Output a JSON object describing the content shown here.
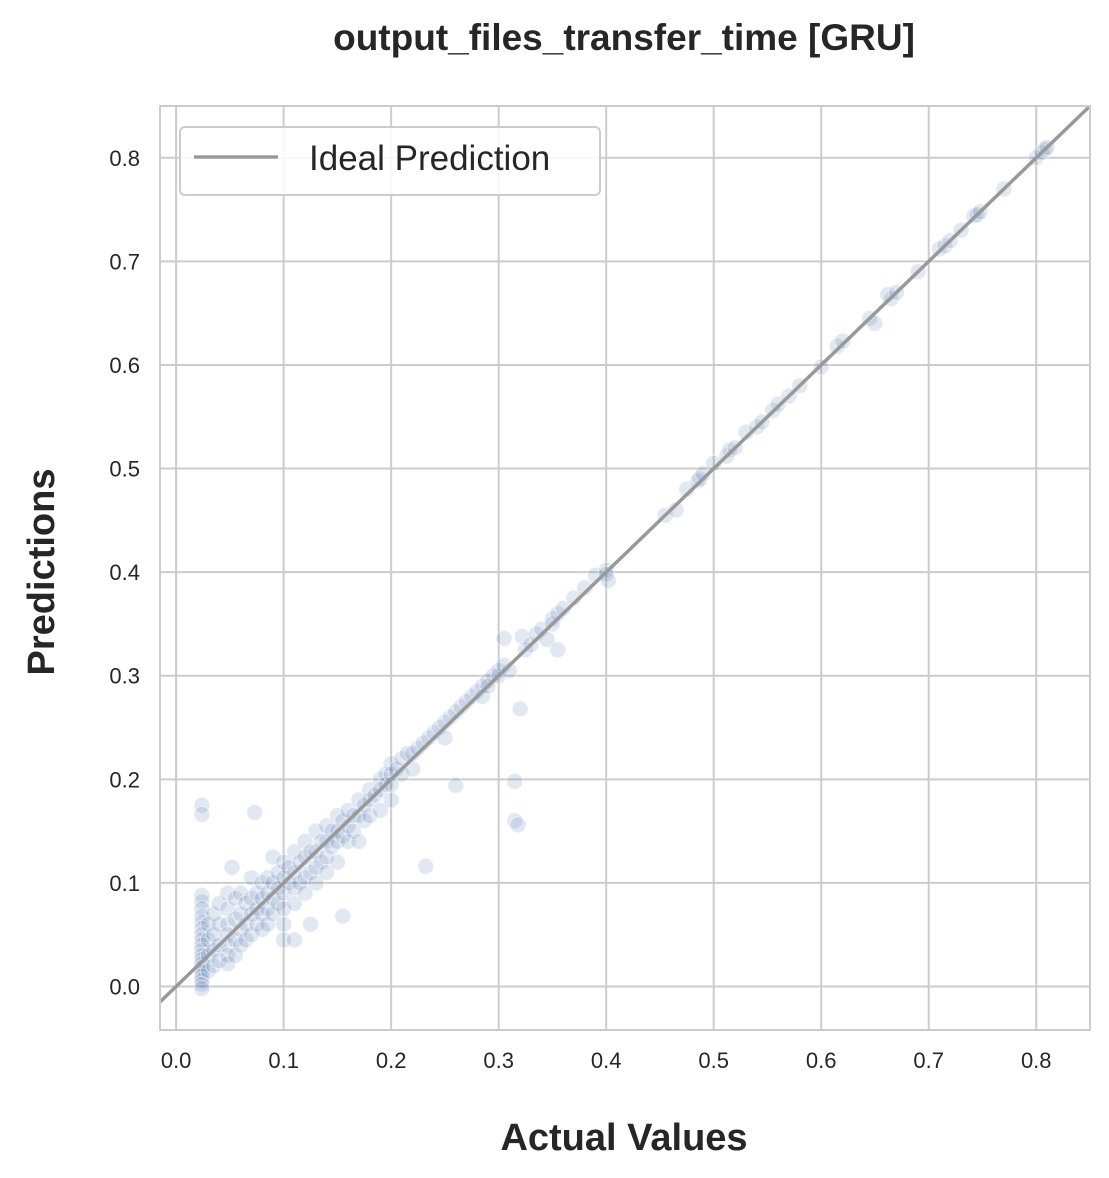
{
  "chart_data": {
    "type": "scatter",
    "title": "output_files_transfer_time [GRU]",
    "xlabel": "Actual Values",
    "ylabel": "Predictions",
    "xlim": [
      -0.015,
      0.85
    ],
    "ylim": [
      -0.042,
      0.85
    ],
    "xticks": [
      "0.0",
      "0.1",
      "0.2",
      "0.3",
      "0.4",
      "0.5",
      "0.6",
      "0.7",
      "0.8"
    ],
    "yticks": [
      "0.0",
      "0.1",
      "0.2",
      "0.3",
      "0.4",
      "0.5",
      "0.6",
      "0.7",
      "0.8"
    ],
    "grid": true,
    "legend": {
      "position": "upper-left",
      "entries": [
        "Ideal Prediction"
      ]
    },
    "colors": {
      "points": "#4c72b0",
      "ideal_line": "#999999",
      "grid": "#cccccc",
      "spine": "#cccccc"
    },
    "reference_line": {
      "name": "Ideal Prediction",
      "slope": 1,
      "intercept": 0
    },
    "series": [
      {
        "points": [
          [
            0.024,
            0.175
          ],
          [
            0.024,
            0.166
          ],
          [
            0.024,
            0.088
          ],
          [
            0.024,
            0.082
          ],
          [
            0.024,
            0.075
          ],
          [
            0.024,
            0.068
          ],
          [
            0.024,
            0.062
          ],
          [
            0.024,
            0.056
          ],
          [
            0.024,
            0.05
          ],
          [
            0.024,
            0.045
          ],
          [
            0.024,
            0.04
          ],
          [
            0.024,
            0.035
          ],
          [
            0.024,
            0.03
          ],
          [
            0.024,
            0.026
          ],
          [
            0.024,
            0.022
          ],
          [
            0.024,
            0.018
          ],
          [
            0.024,
            0.014
          ],
          [
            0.024,
            0.01
          ],
          [
            0.024,
            0.006
          ],
          [
            0.024,
            0.002
          ],
          [
            0.024,
            -0.002
          ],
          [
            0.03,
            0.06
          ],
          [
            0.03,
            0.045
          ],
          [
            0.03,
            0.03
          ],
          [
            0.03,
            0.015
          ],
          [
            0.035,
            0.07
          ],
          [
            0.035,
            0.05
          ],
          [
            0.035,
            0.035
          ],
          [
            0.035,
            0.02
          ],
          [
            0.04,
            0.08
          ],
          [
            0.04,
            0.06
          ],
          [
            0.04,
            0.04
          ],
          [
            0.04,
            0.025
          ],
          [
            0.048,
            0.09
          ],
          [
            0.048,
            0.075
          ],
          [
            0.048,
            0.06
          ],
          [
            0.048,
            0.05
          ],
          [
            0.048,
            0.04
          ],
          [
            0.048,
            0.03
          ],
          [
            0.048,
            0.022
          ],
          [
            0.052,
            0.115
          ],
          [
            0.055,
            0.085
          ],
          [
            0.055,
            0.065
          ],
          [
            0.055,
            0.045
          ],
          [
            0.055,
            0.03
          ],
          [
            0.06,
            0.09
          ],
          [
            0.06,
            0.07
          ],
          [
            0.06,
            0.055
          ],
          [
            0.06,
            0.04
          ],
          [
            0.065,
            0.08
          ],
          [
            0.065,
            0.06
          ],
          [
            0.065,
            0.045
          ],
          [
            0.07,
            0.105
          ],
          [
            0.07,
            0.085
          ],
          [
            0.07,
            0.07
          ],
          [
            0.07,
            0.05
          ],
          [
            0.073,
            0.168
          ],
          [
            0.075,
            0.09
          ],
          [
            0.075,
            0.075
          ],
          [
            0.075,
            0.06
          ],
          [
            0.08,
            0.1
          ],
          [
            0.08,
            0.085
          ],
          [
            0.08,
            0.07
          ],
          [
            0.08,
            0.055
          ],
          [
            0.085,
            0.105
          ],
          [
            0.085,
            0.09
          ],
          [
            0.085,
            0.075
          ],
          [
            0.085,
            0.06
          ],
          [
            0.09,
            0.125
          ],
          [
            0.09,
            0.1
          ],
          [
            0.09,
            0.085
          ],
          [
            0.09,
            0.07
          ],
          [
            0.095,
            0.11
          ],
          [
            0.095,
            0.095
          ],
          [
            0.095,
            0.08
          ],
          [
            0.1,
            0.12
          ],
          [
            0.1,
            0.105
          ],
          [
            0.1,
            0.09
          ],
          [
            0.1,
            0.075
          ],
          [
            0.1,
            0.06
          ],
          [
            0.1,
            0.045
          ],
          [
            0.105,
            0.115
          ],
          [
            0.105,
            0.1
          ],
          [
            0.11,
            0.13
          ],
          [
            0.11,
            0.11
          ],
          [
            0.11,
            0.095
          ],
          [
            0.11,
            0.08
          ],
          [
            0.11,
            0.045
          ],
          [
            0.115,
            0.12
          ],
          [
            0.115,
            0.1
          ],
          [
            0.12,
            0.14
          ],
          [
            0.12,
            0.125
          ],
          [
            0.12,
            0.105
          ],
          [
            0.12,
            0.09
          ],
          [
            0.125,
            0.13
          ],
          [
            0.125,
            0.11
          ],
          [
            0.125,
            0.06
          ],
          [
            0.13,
            0.15
          ],
          [
            0.13,
            0.13
          ],
          [
            0.13,
            0.115
          ],
          [
            0.13,
            0.1
          ],
          [
            0.135,
            0.14
          ],
          [
            0.135,
            0.12
          ],
          [
            0.14,
            0.155
          ],
          [
            0.14,
            0.14
          ],
          [
            0.14,
            0.125
          ],
          [
            0.14,
            0.11
          ],
          [
            0.145,
            0.15
          ],
          [
            0.145,
            0.135
          ],
          [
            0.15,
            0.165
          ],
          [
            0.15,
            0.15
          ],
          [
            0.15,
            0.14
          ],
          [
            0.15,
            0.12
          ],
          [
            0.155,
            0.16
          ],
          [
            0.155,
            0.145
          ],
          [
            0.155,
            0.068
          ],
          [
            0.16,
            0.17
          ],
          [
            0.16,
            0.155
          ],
          [
            0.16,
            0.14
          ],
          [
            0.165,
            0.165
          ],
          [
            0.165,
            0.15
          ],
          [
            0.17,
            0.18
          ],
          [
            0.17,
            0.165
          ],
          [
            0.17,
            0.14
          ],
          [
            0.175,
            0.175
          ],
          [
            0.175,
            0.16
          ],
          [
            0.18,
            0.19
          ],
          [
            0.18,
            0.18
          ],
          [
            0.18,
            0.165
          ],
          [
            0.185,
            0.185
          ],
          [
            0.19,
            0.2
          ],
          [
            0.19,
            0.19
          ],
          [
            0.19,
            0.17
          ],
          [
            0.195,
            0.205
          ],
          [
            0.195,
            0.195
          ],
          [
            0.2,
            0.215
          ],
          [
            0.2,
            0.205
          ],
          [
            0.2,
            0.195
          ],
          [
            0.2,
            0.18
          ],
          [
            0.205,
            0.21
          ],
          [
            0.21,
            0.22
          ],
          [
            0.21,
            0.205
          ],
          [
            0.215,
            0.225
          ],
          [
            0.22,
            0.225
          ],
          [
            0.22,
            0.21
          ],
          [
            0.225,
            0.23
          ],
          [
            0.232,
            0.116
          ],
          [
            0.23,
            0.235
          ],
          [
            0.235,
            0.24
          ],
          [
            0.24,
            0.245
          ],
          [
            0.245,
            0.25
          ],
          [
            0.25,
            0.255
          ],
          [
            0.25,
            0.24
          ],
          [
            0.255,
            0.26
          ],
          [
            0.26,
            0.265
          ],
          [
            0.26,
            0.194
          ],
          [
            0.265,
            0.27
          ],
          [
            0.27,
            0.275
          ],
          [
            0.275,
            0.28
          ],
          [
            0.28,
            0.285
          ],
          [
            0.285,
            0.29
          ],
          [
            0.285,
            0.28
          ],
          [
            0.29,
            0.295
          ],
          [
            0.29,
            0.29
          ],
          [
            0.295,
            0.3
          ],
          [
            0.3,
            0.305
          ],
          [
            0.3,
            0.3
          ],
          [
            0.305,
            0.31
          ],
          [
            0.305,
            0.336
          ],
          [
            0.31,
            0.305
          ],
          [
            0.315,
            0.198
          ],
          [
            0.315,
            0.16
          ],
          [
            0.318,
            0.156
          ],
          [
            0.32,
            0.268
          ],
          [
            0.322,
            0.338
          ],
          [
            0.325,
            0.325
          ],
          [
            0.33,
            0.33
          ],
          [
            0.335,
            0.34
          ],
          [
            0.34,
            0.345
          ],
          [
            0.345,
            0.335
          ],
          [
            0.35,
            0.355
          ],
          [
            0.35,
            0.35
          ],
          [
            0.355,
            0.36
          ],
          [
            0.355,
            0.325
          ],
          [
            0.36,
            0.365
          ],
          [
            0.37,
            0.375
          ],
          [
            0.38,
            0.385
          ],
          [
            0.39,
            0.397
          ],
          [
            0.4,
            0.402
          ],
          [
            0.4,
            0.398
          ],
          [
            0.402,
            0.392
          ],
          [
            0.455,
            0.455
          ],
          [
            0.465,
            0.46
          ],
          [
            0.475,
            0.48
          ],
          [
            0.485,
            0.488
          ],
          [
            0.487,
            0.49
          ],
          [
            0.49,
            0.495
          ],
          [
            0.5,
            0.505
          ],
          [
            0.512,
            0.512
          ],
          [
            0.515,
            0.518
          ],
          [
            0.52,
            0.52
          ],
          [
            0.53,
            0.535
          ],
          [
            0.54,
            0.54
          ],
          [
            0.545,
            0.545
          ],
          [
            0.555,
            0.556
          ],
          [
            0.56,
            0.562
          ],
          [
            0.57,
            0.57
          ],
          [
            0.58,
            0.58
          ],
          [
            0.6,
            0.598
          ],
          [
            0.615,
            0.618
          ],
          [
            0.62,
            0.623
          ],
          [
            0.645,
            0.645
          ],
          [
            0.65,
            0.64
          ],
          [
            0.662,
            0.668
          ],
          [
            0.665,
            0.664
          ],
          [
            0.67,
            0.67
          ],
          [
            0.69,
            0.69
          ],
          [
            0.71,
            0.712
          ],
          [
            0.715,
            0.715
          ],
          [
            0.72,
            0.72
          ],
          [
            0.73,
            0.73
          ],
          [
            0.742,
            0.744
          ],
          [
            0.745,
            0.745
          ],
          [
            0.748,
            0.748
          ],
          [
            0.77,
            0.77
          ],
          [
            0.8,
            0.8
          ],
          [
            0.805,
            0.805
          ],
          [
            0.808,
            0.808
          ],
          [
            0.81,
            0.81
          ]
        ]
      }
    ]
  }
}
